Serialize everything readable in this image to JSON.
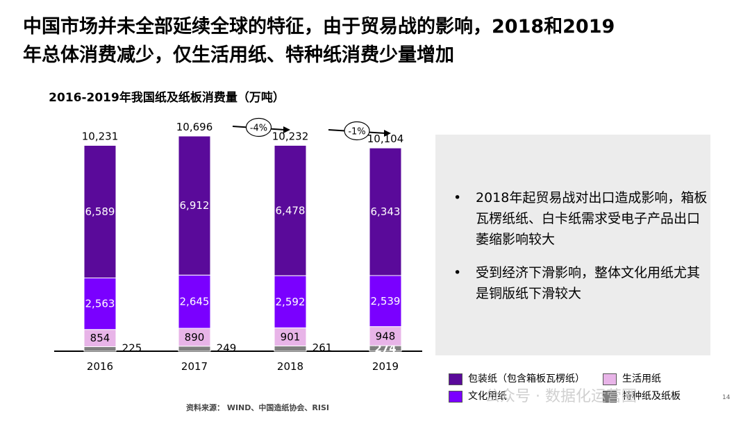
{
  "page": {
    "title_line1": "中国市场并未全部延续全球的特征，由于贸易战的影响，2018和2019",
    "title_line2": "年总体消费减少，仅生活用纸、特种纸消费少量增加",
    "source": "资料来源： WIND、中国造纸协会、RISI",
    "watermark": "公众号 · 数据化运营圈",
    "page_number": "14"
  },
  "panel": {
    "bullets": [
      "2018年起贸易战对出口造成影响，箱板瓦楞纸纸、白卡纸需求受电子产品出口萎缩影响较大",
      "受到经济下滑影响，整体文化用纸尤其是铜版纸下滑较大"
    ]
  },
  "chart_data": {
    "type": "bar",
    "stacked": true,
    "title": "2016-2019年我国纸及纸板消费量（万吨）",
    "categories": [
      "2016",
      "2017",
      "2018",
      "2019"
    ],
    "series": [
      {
        "name": "特种纸及纸板",
        "values": [
          225,
          249,
          261,
          274
        ],
        "color": "#7f7f7f"
      },
      {
        "name": "生活用纸",
        "values": [
          854,
          890,
          901,
          948
        ],
        "color": "#e8b4e8"
      },
      {
        "name": "文化用纸",
        "values": [
          2563,
          2645,
          2592,
          2539
        ],
        "color": "#7a00ff"
      },
      {
        "name": "包装纸（包含箱板瓦楞纸）",
        "values": [
          6589,
          6912,
          6478,
          6343
        ],
        "color": "#5a0a9a"
      }
    ],
    "totals": [
      "10,231",
      "10,696",
      "10,232",
      "10,104"
    ],
    "value_labels": {
      "特种纸及纸板": [
        "225",
        "249",
        "261",
        "274"
      ],
      "生活用纸": [
        "854",
        "890",
        "901",
        "948"
      ],
      "文化用纸": [
        "2,563",
        "2,645",
        "2,592",
        "2,539"
      ],
      "包装纸（包含箱板瓦楞纸）": [
        "6,589",
        "6,912",
        "6,478",
        "6,343"
      ]
    },
    "changes": [
      {
        "from": "2017",
        "to": "2018",
        "label": "-4%"
      },
      {
        "from": "2018",
        "to": "2019",
        "label": "-1%"
      }
    ],
    "legend": {
      "position": "bottom-right",
      "order": [
        "包装纸（包含箱板瓦楞纸）",
        "生活用纸",
        "文化用纸",
        "特种纸及纸板"
      ]
    },
    "ylim": [
      0,
      10696
    ],
    "grid": false
  }
}
